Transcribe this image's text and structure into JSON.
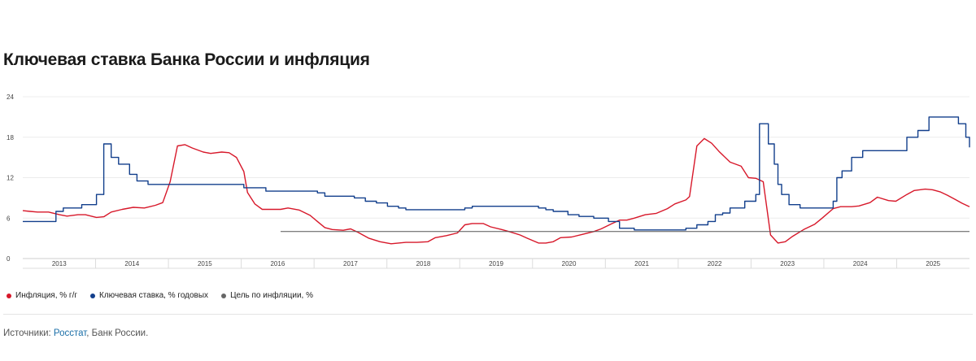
{
  "title": "Ключевая ставка Банка России и инфляция",
  "legend": [
    {
      "label": "Инфляция, % г/г",
      "color": "#d7182a"
    },
    {
      "label": "Ключевая ставка, % годовых",
      "color": "#123f8c"
    },
    {
      "label": "Цель по инфляции, %",
      "color": "#666666"
    }
  ],
  "sources": {
    "prefix": "Источники: ",
    "link": "Росстат",
    "rest": ", Банк России."
  },
  "chart_data": {
    "type": "line",
    "y_ticks": [
      0,
      6,
      12,
      18,
      24
    ],
    "ylim": [
      0,
      24
    ],
    "xlim": [
      2013.0,
      2025.85
    ],
    "x_tick_labels": [
      "2013",
      "2014",
      "2015",
      "2016",
      "2017",
      "2018",
      "2019",
      "2020",
      "2021",
      "2022",
      "2023",
      "2024",
      "2025"
    ],
    "grid": true,
    "series": [
      {
        "name": "Инфляция, % г/г",
        "color": "#d7182a",
        "step": false,
        "points": [
          [
            2013.0,
            7.1
          ],
          [
            2013.1,
            7.0
          ],
          [
            2013.2,
            6.9
          ],
          [
            2013.35,
            6.9
          ],
          [
            2013.5,
            6.5
          ],
          [
            2013.6,
            6.3
          ],
          [
            2013.75,
            6.5
          ],
          [
            2013.85,
            6.5
          ],
          [
            2014.0,
            6.1
          ],
          [
            2014.1,
            6.2
          ],
          [
            2014.2,
            6.9
          ],
          [
            2014.35,
            7.3
          ],
          [
            2014.5,
            7.6
          ],
          [
            2014.65,
            7.5
          ],
          [
            2014.8,
            7.9
          ],
          [
            2014.9,
            8.3
          ],
          [
            2015.0,
            11.4
          ],
          [
            2015.1,
            16.7
          ],
          [
            2015.2,
            16.9
          ],
          [
            2015.3,
            16.4
          ],
          [
            2015.45,
            15.8
          ],
          [
            2015.55,
            15.6
          ],
          [
            2015.7,
            15.8
          ],
          [
            2015.8,
            15.7
          ],
          [
            2015.9,
            15.0
          ],
          [
            2016.0,
            12.9
          ],
          [
            2016.05,
            9.8
          ],
          [
            2016.15,
            8.1
          ],
          [
            2016.25,
            7.3
          ],
          [
            2016.5,
            7.3
          ],
          [
            2016.6,
            7.5
          ],
          [
            2016.75,
            7.2
          ],
          [
            2016.9,
            6.4
          ],
          [
            2017.0,
            5.5
          ],
          [
            2017.1,
            4.6
          ],
          [
            2017.2,
            4.3
          ],
          [
            2017.35,
            4.2
          ],
          [
            2017.45,
            4.4
          ],
          [
            2017.55,
            3.9
          ],
          [
            2017.7,
            3.0
          ],
          [
            2017.85,
            2.5
          ],
          [
            2018.0,
            2.2
          ],
          [
            2018.1,
            2.3
          ],
          [
            2018.2,
            2.4
          ],
          [
            2018.35,
            2.4
          ],
          [
            2018.5,
            2.5
          ],
          [
            2018.6,
            3.1
          ],
          [
            2018.75,
            3.4
          ],
          [
            2018.9,
            3.8
          ],
          [
            2019.0,
            5.0
          ],
          [
            2019.1,
            5.2
          ],
          [
            2019.25,
            5.2
          ],
          [
            2019.35,
            4.7
          ],
          [
            2019.5,
            4.3
          ],
          [
            2019.6,
            4.0
          ],
          [
            2019.75,
            3.5
          ],
          [
            2019.85,
            3.0
          ],
          [
            2020.0,
            2.3
          ],
          [
            2020.1,
            2.3
          ],
          [
            2020.2,
            2.5
          ],
          [
            2020.3,
            3.1
          ],
          [
            2020.45,
            3.2
          ],
          [
            2020.6,
            3.6
          ],
          [
            2020.75,
            4.0
          ],
          [
            2020.85,
            4.4
          ],
          [
            2021.0,
            5.2
          ],
          [
            2021.1,
            5.7
          ],
          [
            2021.2,
            5.7
          ],
          [
            2021.3,
            6.0
          ],
          [
            2021.45,
            6.5
          ],
          [
            2021.6,
            6.7
          ],
          [
            2021.75,
            7.4
          ],
          [
            2021.85,
            8.1
          ],
          [
            2022.0,
            8.7
          ],
          [
            2022.05,
            9.2
          ],
          [
            2022.15,
            16.7
          ],
          [
            2022.25,
            17.8
          ],
          [
            2022.35,
            17.1
          ],
          [
            2022.45,
            15.9
          ],
          [
            2022.6,
            14.3
          ],
          [
            2022.75,
            13.7
          ],
          [
            2022.85,
            12.0
          ],
          [
            2022.95,
            11.9
          ],
          [
            2023.05,
            11.4
          ],
          [
            2023.15,
            3.5
          ],
          [
            2023.25,
            2.3
          ],
          [
            2023.35,
            2.5
          ],
          [
            2023.45,
            3.3
          ],
          [
            2023.6,
            4.3
          ],
          [
            2023.75,
            5.1
          ],
          [
            2023.85,
            6.0
          ],
          [
            2024.0,
            7.4
          ],
          [
            2024.1,
            7.7
          ],
          [
            2024.25,
            7.7
          ],
          [
            2024.35,
            7.8
          ],
          [
            2024.5,
            8.3
          ],
          [
            2024.6,
            9.1
          ],
          [
            2024.75,
            8.6
          ],
          [
            2024.85,
            8.5
          ],
          [
            2025.0,
            9.5
          ],
          [
            2025.1,
            10.1
          ],
          [
            2025.25,
            10.3
          ],
          [
            2025.35,
            10.2
          ],
          [
            2025.45,
            9.9
          ],
          [
            2025.55,
            9.4
          ],
          [
            2025.65,
            8.8
          ],
          [
            2025.75,
            8.2
          ],
          [
            2025.85,
            7.7
          ]
        ]
      },
      {
        "name": "Ключевая ставка, % годовых",
        "color": "#123f8c",
        "step": true,
        "points": [
          [
            2013.0,
            5.5
          ],
          [
            2013.45,
            5.5
          ],
          [
            2013.45,
            7.0
          ],
          [
            2013.55,
            7.0
          ],
          [
            2013.55,
            7.5
          ],
          [
            2013.8,
            7.5
          ],
          [
            2013.8,
            8.0
          ],
          [
            2014.0,
            8.0
          ],
          [
            2014.0,
            9.5
          ],
          [
            2014.1,
            9.5
          ],
          [
            2014.1,
            17.0
          ],
          [
            2014.2,
            17.0
          ],
          [
            2014.2,
            15.0
          ],
          [
            2014.3,
            15.0
          ],
          [
            2014.3,
            14.0
          ],
          [
            2014.45,
            14.0
          ],
          [
            2014.45,
            12.5
          ],
          [
            2014.55,
            12.5
          ],
          [
            2014.55,
            11.5
          ],
          [
            2014.7,
            11.5
          ],
          [
            2014.7,
            11.0
          ],
          [
            2016.0,
            11.0
          ],
          [
            2016.0,
            10.5
          ],
          [
            2016.3,
            10.5
          ],
          [
            2016.3,
            10.0
          ],
          [
            2017.0,
            10.0
          ],
          [
            2017.0,
            9.75
          ],
          [
            2017.1,
            9.75
          ],
          [
            2017.1,
            9.25
          ],
          [
            2017.5,
            9.25
          ],
          [
            2017.5,
            9.0
          ],
          [
            2017.65,
            9.0
          ],
          [
            2017.65,
            8.5
          ],
          [
            2017.8,
            8.5
          ],
          [
            2017.8,
            8.25
          ],
          [
            2017.95,
            8.25
          ],
          [
            2017.95,
            7.75
          ],
          [
            2018.1,
            7.75
          ],
          [
            2018.1,
            7.5
          ],
          [
            2018.2,
            7.5
          ],
          [
            2018.2,
            7.25
          ],
          [
            2019.0,
            7.25
          ],
          [
            2019.0,
            7.5
          ],
          [
            2019.1,
            7.5
          ],
          [
            2019.1,
            7.75
          ],
          [
            2020.0,
            7.75
          ],
          [
            2020.0,
            7.5
          ],
          [
            2020.1,
            7.5
          ],
          [
            2020.1,
            7.25
          ],
          [
            2020.2,
            7.25
          ],
          [
            2020.2,
            7.0
          ],
          [
            2020.4,
            7.0
          ],
          [
            2020.4,
            6.5
          ],
          [
            2020.55,
            6.5
          ],
          [
            2020.55,
            6.25
          ],
          [
            2020.75,
            6.25
          ],
          [
            2020.75,
            6.0
          ],
          [
            2020.95,
            6.0
          ],
          [
            2020.95,
            5.5
          ],
          [
            2021.1,
            5.5
          ],
          [
            2021.1,
            4.5
          ],
          [
            2021.3,
            4.5
          ],
          [
            2021.3,
            4.25
          ],
          [
            2022.0,
            4.25
          ],
          [
            2022.0,
            4.5
          ],
          [
            2022.15,
            4.5
          ],
          [
            2022.15,
            5.0
          ],
          [
            2022.3,
            5.0
          ],
          [
            2022.3,
            5.5
          ],
          [
            2022.4,
            5.5
          ],
          [
            2022.4,
            6.5
          ],
          [
            2022.5,
            6.5
          ],
          [
            2022.5,
            6.75
          ],
          [
            2022.6,
            6.75
          ],
          [
            2022.6,
            7.5
          ],
          [
            2022.8,
            7.5
          ],
          [
            2022.8,
            8.5
          ],
          [
            2022.95,
            8.5
          ],
          [
            2022.95,
            9.5
          ],
          [
            2023.0,
            9.5
          ],
          [
            2023.0,
            20.0
          ],
          [
            2023.12,
            20.0
          ],
          [
            2023.12,
            17.0
          ],
          [
            2023.2,
            17.0
          ],
          [
            2023.2,
            14.0
          ],
          [
            2023.25,
            14.0
          ],
          [
            2023.25,
            11.0
          ],
          [
            2023.3,
            11.0
          ],
          [
            2023.3,
            9.5
          ],
          [
            2023.4,
            9.5
          ],
          [
            2023.4,
            8.0
          ],
          [
            2023.55,
            8.0
          ],
          [
            2023.55,
            7.5
          ],
          [
            2024.0,
            7.5
          ],
          [
            2024.0,
            8.5
          ],
          [
            2024.05,
            8.5
          ],
          [
            2024.05,
            12.0
          ],
          [
            2024.12,
            12.0
          ],
          [
            2024.12,
            13.0
          ],
          [
            2024.25,
            13.0
          ],
          [
            2024.25,
            15.0
          ],
          [
            2024.4,
            15.0
          ],
          [
            2024.4,
            16.0
          ],
          [
            2025.0,
            16.0
          ],
          [
            2025.0,
            18.0
          ],
          [
            2025.15,
            18.0
          ],
          [
            2025.15,
            19.0
          ],
          [
            2025.3,
            19.0
          ],
          [
            2025.3,
            21.0
          ],
          [
            2025.7,
            21.0
          ],
          [
            2025.7,
            20.0
          ],
          [
            2025.8,
            20.0
          ],
          [
            2025.8,
            18.0
          ],
          [
            2025.9,
            18.0
          ],
          [
            2025.9,
            17.0
          ],
          [
            2026.0,
            17.0
          ],
          [
            2026.0,
            16.5
          ],
          [
            2026.1,
            16.5
          ]
        ]
      },
      {
        "name": "Цель по инфляции, %",
        "color": "#555555",
        "step": false,
        "points": [
          [
            2016.5,
            4.0
          ],
          [
            2026.1,
            4.0
          ]
        ]
      }
    ]
  }
}
